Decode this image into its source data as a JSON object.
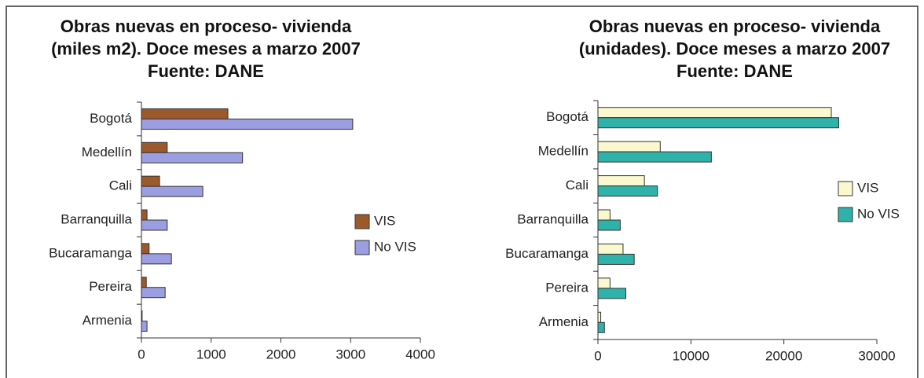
{
  "chart_data": [
    {
      "type": "barh",
      "title": [
        "Obras nuevas en proceso- vivienda",
        "(miles m2). Doce meses a marzo 2007",
        "Fuente: DANE"
      ],
      "categories": [
        "Bogotá",
        "Medellín",
        "Cali",
        "Barranquilla",
        "Bucaramanga",
        "Pereira",
        "Armenia"
      ],
      "series": [
        {
          "name": "VIS",
          "color": "#9c5a2c",
          "values": [
            1240,
            370,
            260,
            80,
            110,
            70,
            10
          ]
        },
        {
          "name": "No VIS",
          "color": "#9b9ee0",
          "values": [
            3030,
            1450,
            880,
            370,
            430,
            340,
            80
          ]
        }
      ],
      "xlim": [
        0,
        4000
      ],
      "xticks": [
        0,
        1000,
        2000,
        3000,
        4000
      ],
      "legend": "right"
    },
    {
      "type": "barh",
      "title": [
        "Obras nuevas en proceso- vivienda",
        "(unidades). Doce meses a marzo 2007",
        "Fuente: DANE"
      ],
      "categories": [
        "Bogotá",
        "Medellín",
        "Cali",
        "Barranquilla",
        "Bucaramanga",
        "Pereira",
        "Armenia"
      ],
      "series": [
        {
          "name": "VIS",
          "color": "#fbf8cf",
          "values": [
            25100,
            6700,
            5000,
            1300,
            2700,
            1300,
            300
          ]
        },
        {
          "name": "No VIS",
          "color": "#2fb2aa",
          "values": [
            25900,
            12200,
            6400,
            2400,
            3900,
            3000,
            700
          ]
        }
      ],
      "xlim": [
        0,
        30000
      ],
      "xticks": [
        0,
        10000,
        20000,
        30000
      ],
      "legend": "right"
    }
  ]
}
